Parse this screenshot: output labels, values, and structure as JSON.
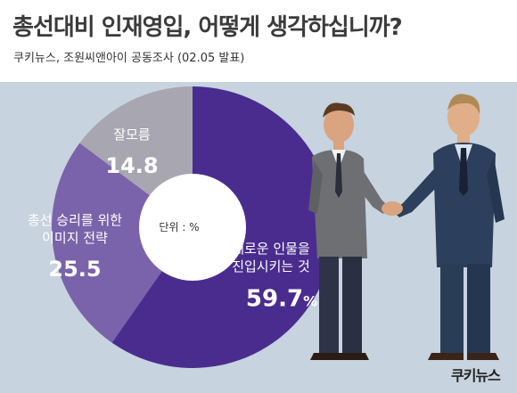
{
  "title": "총선대비 인재영입, 어떻게 생각하십니까?",
  "subtitle": "쿠키뉴스, 조원씨앤아이 공동조사 (02.05 발표)",
  "logo_text": "쿠키뉴스",
  "colors": {
    "background_band": "#c7d3de",
    "slice_large": "#4a2c8e",
    "slice_medium": "#7a63aa",
    "slice_small": "#a8a6b0",
    "center_hole": "#ffffff",
    "label_text": "#ffffff"
  },
  "chart_data": {
    "type": "pie",
    "style": "donut",
    "unit_label": "단위 : %",
    "start_angle_deg": 0,
    "direction": "clockwise",
    "slices": [
      {
        "name": "새로운 인물을 진입시키는 것",
        "label_lines": [
          "새로운 인물을",
          "진입시키는 것"
        ],
        "value": 59.7,
        "value_text": "59.7",
        "unit_text": "%",
        "color": "#4a2c8e"
      },
      {
        "name": "총선 승리를 위한 이미지 전략",
        "label_lines": [
          "총선 승리를 위한",
          "이미지 전략"
        ],
        "value": 25.5,
        "value_text": "25.5",
        "unit_text": "",
        "color": "#7a63aa"
      },
      {
        "name": "잘모름",
        "label_lines": [
          "잘모름"
        ],
        "value": 14.8,
        "value_text": "14.8",
        "unit_text": "",
        "color": "#a8a6b0"
      }
    ]
  },
  "illustration": {
    "subject": "two businessmen shaking hands",
    "icon": "handshake-illustration"
  }
}
